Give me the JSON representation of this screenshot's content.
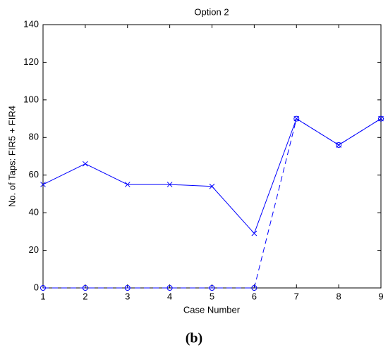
{
  "chart_data": {
    "type": "line",
    "title": "Option 2",
    "x_label": "Case Number",
    "y_label": "No. of Taps: FIR5 + FIR4",
    "caption": "(b)",
    "x": [
      1,
      2,
      3,
      4,
      5,
      6,
      7,
      8,
      9
    ],
    "series": [
      {
        "color": "#0000ff",
        "dash": false,
        "marker": "x",
        "values": [
          55,
          66,
          55,
          55,
          54,
          29,
          90,
          76,
          90
        ]
      },
      {
        "color": "#0000ff",
        "dash": true,
        "marker": "o",
        "values": [
          0,
          0,
          0,
          0,
          0,
          0,
          90,
          76,
          90
        ]
      }
    ],
    "xlim": [
      1,
      9
    ],
    "xticks": [
      1,
      2,
      3,
      4,
      5,
      6,
      7,
      8,
      9
    ],
    "ylim": [
      0,
      140
    ],
    "yticks": [
      0,
      20,
      40,
      60,
      80,
      100,
      120,
      140
    ],
    "grid": false
  }
}
